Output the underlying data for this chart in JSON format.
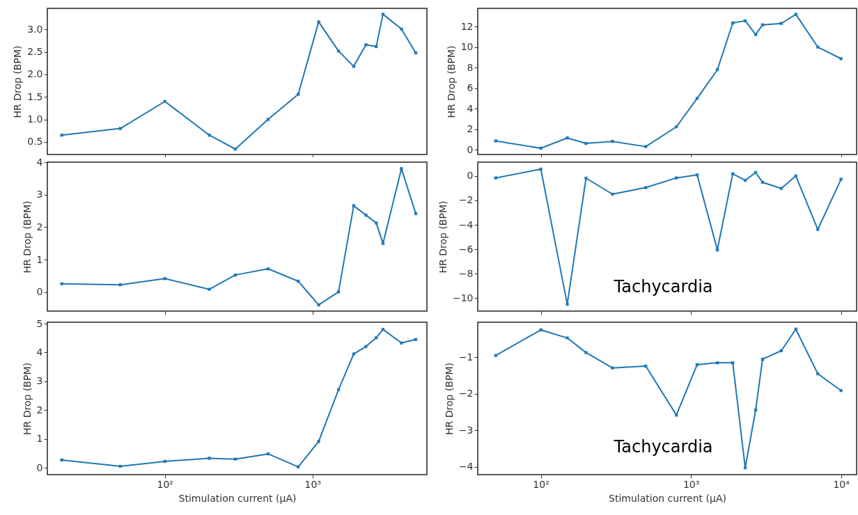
{
  "chart_data": [
    {
      "type": "line",
      "ylabel": "HR Drop (BPM)",
      "log": "x",
      "marker": "cross",
      "tick_labels": "y",
      "xlim": [
        16,
        5950
      ],
      "xticks": [
        {
          "value": 100,
          "label": null
        },
        {
          "value": 1000,
          "label": null
        }
      ],
      "ylim": [
        0.22,
        3.47
      ],
      "yticks": [
        0.5,
        {
          "value": 1,
          "label": "1.0"
        },
        1.5,
        {
          "value": 2,
          "label": "2.0"
        },
        2.5,
        {
          "value": 3,
          "label": "3.0"
        }
      ],
      "x": [
        20,
        50,
        100,
        200,
        300,
        500,
        800,
        1100,
        1500,
        1900,
        2300,
        2700,
        3000,
        4000,
        5000
      ],
      "series": [
        {
          "color": "#1f77b4",
          "values": [
            0.65,
            0.8,
            1.4,
            0.65,
            0.34,
            1.0,
            1.56,
            3.17,
            2.52,
            2.18,
            2.66,
            2.62,
            3.34,
            3.01,
            2.48
          ]
        }
      ]
    },
    {
      "type": "line",
      "ylabel": "HR Drop (BPM)",
      "log": "x",
      "marker": "cross",
      "tick_labels": "y",
      "xlim": [
        38,
        12700
      ],
      "xticks": [
        {
          "value": 100,
          "label": null
        },
        {
          "value": 1000,
          "label": null
        },
        {
          "value": 10000,
          "label": null
        }
      ],
      "ylim": [
        -0.45,
        13.76
      ],
      "yticks": [
        0,
        2,
        4,
        6,
        8,
        10,
        12
      ],
      "x": [
        50,
        100,
        150,
        200,
        300,
        500,
        800,
        1100,
        1500,
        1900,
        2300,
        2700,
        3000,
        4000,
        5000,
        7000,
        10000
      ],
      "series": [
        {
          "color": "#1f77b4",
          "values": [
            0.87,
            0.16,
            1.16,
            0.63,
            0.82,
            0.32,
            2.24,
            5.0,
            7.79,
            12.34,
            12.55,
            11.21,
            12.16,
            12.29,
            13.18,
            10.0,
            8.87
          ]
        }
      ]
    },
    {
      "type": "line",
      "ylabel": "HR Drop (BPM)",
      "log": "x",
      "marker": "cross",
      "tick_labels": "y",
      "xlim": [
        16,
        5950
      ],
      "xticks": [
        {
          "value": 100,
          "label": null
        },
        {
          "value": 1000,
          "label": null
        }
      ],
      "ylim": [
        -0.58,
        4.0
      ],
      "yticks": [
        0,
        1,
        2,
        3,
        4
      ],
      "x": [
        20,
        50,
        100,
        200,
        300,
        500,
        800,
        1100,
        1500,
        1900,
        2300,
        2700,
        3000,
        4000,
        5000
      ],
      "series": [
        {
          "color": "#1f77b4",
          "values": [
            0.26,
            0.23,
            0.42,
            0.09,
            0.53,
            0.72,
            0.34,
            -0.39,
            0.01,
            2.66,
            2.37,
            2.13,
            1.5,
            3.8,
            2.42
          ]
        }
      ]
    },
    {
      "type": "line",
      "ylabel": "HR Drop (BPM)",
      "log": "x",
      "marker": "cross",
      "tick_labels": "y",
      "xlim": [
        38,
        12700
      ],
      "xticks": [
        {
          "value": 100,
          "label": null
        },
        {
          "value": 1000,
          "label": null
        },
        {
          "value": 10000,
          "label": null
        }
      ],
      "ylim": [
        -11.06,
        1.13
      ],
      "yticks": [
        {
          "value": -10,
          "label": "−10"
        },
        {
          "value": -8,
          "label": "−8"
        },
        {
          "value": -6,
          "label": "−6"
        },
        {
          "value": -4,
          "label": "−4"
        },
        {
          "value": -2,
          "label": "−2"
        },
        0
      ],
      "annotations": [
        "Tachycardia"
      ],
      "x": [
        50,
        100,
        150,
        200,
        300,
        500,
        800,
        1100,
        1500,
        1900,
        2300,
        2700,
        3000,
        4000,
        5000,
        7000,
        10000
      ],
      "series": [
        {
          "color": "#1f77b4",
          "values": [
            -0.16,
            0.56,
            -10.5,
            -0.18,
            -1.49,
            -0.95,
            -0.16,
            0.09,
            -6.05,
            0.18,
            -0.36,
            0.29,
            -0.52,
            -1.02,
            0,
            -4.38,
            -0.27
          ]
        }
      ]
    },
    {
      "type": "line",
      "xlabel": "Stimulation current (µA)",
      "ylabel": "HR Drop (BPM)",
      "log": "x",
      "marker": "cross",
      "xlim": [
        16,
        5950
      ],
      "xticks": [
        {
          "value": 100,
          "label": "10²"
        },
        {
          "value": 1000,
          "label": "10³"
        }
      ],
      "ylim": [
        -0.24,
        5.05
      ],
      "yticks": [
        0,
        1,
        2,
        3,
        4,
        5
      ],
      "x": [
        20,
        50,
        100,
        200,
        300,
        500,
        800,
        1100,
        1500,
        1900,
        2300,
        2700,
        3000,
        4000,
        5000
      ],
      "series": [
        {
          "color": "#1f77b4",
          "values": [
            0.27,
            0.05,
            0.22,
            0.33,
            0.3,
            0.48,
            0.03,
            0.91,
            2.71,
            3.95,
            4.21,
            4.51,
            4.8,
            4.33,
            4.45
          ]
        }
      ]
    },
    {
      "type": "line",
      "xlabel": "Stimulation current (µA)",
      "ylabel": "HR Drop (BPM)",
      "log": "x",
      "marker": "cross",
      "xlim": [
        38,
        12700
      ],
      "xticks": [
        {
          "value": 100,
          "label": "10²"
        },
        {
          "value": 1000,
          "label": "10³"
        },
        {
          "value": 10000,
          "label": "10⁴"
        }
      ],
      "ylim": [
        -4.21,
        -0.04
      ],
      "yticks": [
        {
          "value": -4,
          "label": "−4"
        },
        {
          "value": -3,
          "label": "−3"
        },
        {
          "value": -2,
          "label": "−2"
        },
        {
          "value": -1,
          "label": "−1"
        }
      ],
      "annotations": [
        "Tachycardia"
      ],
      "x": [
        50,
        100,
        150,
        200,
        300,
        500,
        800,
        1100,
        1500,
        1900,
        2300,
        2700,
        3000,
        4000,
        5000,
        7000,
        10000
      ],
      "series": [
        {
          "color": "#1f77b4",
          "values": [
            -0.95,
            -0.25,
            -0.47,
            -0.87,
            -1.29,
            -1.24,
            -2.58,
            -1.2,
            -1.15,
            -1.15,
            -4.02,
            -2.44,
            -1.05,
            -0.82,
            -0.23,
            -1.45,
            -1.91
          ]
        }
      ]
    }
  ]
}
